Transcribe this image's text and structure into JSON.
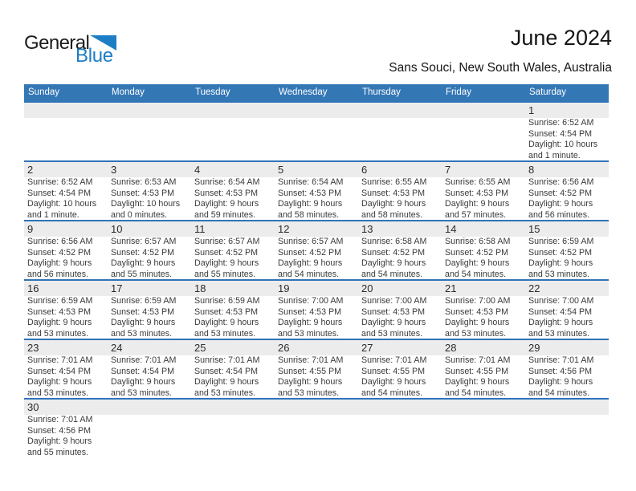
{
  "logo": {
    "line1": "General",
    "line2": "Blue",
    "blue": "#1d7ec6"
  },
  "header": {
    "title": "June 2024",
    "subtitle": "Sans Souci, New South Wales, Australia"
  },
  "colors": {
    "weekday_bar": "#3477b5",
    "week_divider": "#2e74b8",
    "number_strip": "#ececec",
    "weekday_text": "#ffffff"
  },
  "weekday_header": [
    "Sunday",
    "Monday",
    "Tuesday",
    "Wednesday",
    "Thursday",
    "Friday",
    "Saturday"
  ],
  "weeks": [
    [
      null,
      null,
      null,
      null,
      null,
      null,
      {
        "n": "1",
        "lines": [
          "Sunrise: 6:52 AM",
          "Sunset: 4:54 PM",
          "Daylight: 10 hours",
          "and 1 minute."
        ]
      }
    ],
    [
      {
        "n": "2",
        "lines": [
          "Sunrise: 6:52 AM",
          "Sunset: 4:54 PM",
          "Daylight: 10 hours",
          "and 1 minute."
        ]
      },
      {
        "n": "3",
        "lines": [
          "Sunrise: 6:53 AM",
          "Sunset: 4:53 PM",
          "Daylight: 10 hours",
          "and 0 minutes."
        ]
      },
      {
        "n": "4",
        "lines": [
          "Sunrise: 6:54 AM",
          "Sunset: 4:53 PM",
          "Daylight: 9 hours",
          "and 59 minutes."
        ]
      },
      {
        "n": "5",
        "lines": [
          "Sunrise: 6:54 AM",
          "Sunset: 4:53 PM",
          "Daylight: 9 hours",
          "and 58 minutes."
        ]
      },
      {
        "n": "6",
        "lines": [
          "Sunrise: 6:55 AM",
          "Sunset: 4:53 PM",
          "Daylight: 9 hours",
          "and 58 minutes."
        ]
      },
      {
        "n": "7",
        "lines": [
          "Sunrise: 6:55 AM",
          "Sunset: 4:53 PM",
          "Daylight: 9 hours",
          "and 57 minutes."
        ]
      },
      {
        "n": "8",
        "lines": [
          "Sunrise: 6:56 AM",
          "Sunset: 4:52 PM",
          "Daylight: 9 hours",
          "and 56 minutes."
        ]
      }
    ],
    [
      {
        "n": "9",
        "lines": [
          "Sunrise: 6:56 AM",
          "Sunset: 4:52 PM",
          "Daylight: 9 hours",
          "and 56 minutes."
        ]
      },
      {
        "n": "10",
        "lines": [
          "Sunrise: 6:57 AM",
          "Sunset: 4:52 PM",
          "Daylight: 9 hours",
          "and 55 minutes."
        ]
      },
      {
        "n": "11",
        "lines": [
          "Sunrise: 6:57 AM",
          "Sunset: 4:52 PM",
          "Daylight: 9 hours",
          "and 55 minutes."
        ]
      },
      {
        "n": "12",
        "lines": [
          "Sunrise: 6:57 AM",
          "Sunset: 4:52 PM",
          "Daylight: 9 hours",
          "and 54 minutes."
        ]
      },
      {
        "n": "13",
        "lines": [
          "Sunrise: 6:58 AM",
          "Sunset: 4:52 PM",
          "Daylight: 9 hours",
          "and 54 minutes."
        ]
      },
      {
        "n": "14",
        "lines": [
          "Sunrise: 6:58 AM",
          "Sunset: 4:52 PM",
          "Daylight: 9 hours",
          "and 54 minutes."
        ]
      },
      {
        "n": "15",
        "lines": [
          "Sunrise: 6:59 AM",
          "Sunset: 4:52 PM",
          "Daylight: 9 hours",
          "and 53 minutes."
        ]
      }
    ],
    [
      {
        "n": "16",
        "lines": [
          "Sunrise: 6:59 AM",
          "Sunset: 4:53 PM",
          "Daylight: 9 hours",
          "and 53 minutes."
        ]
      },
      {
        "n": "17",
        "lines": [
          "Sunrise: 6:59 AM",
          "Sunset: 4:53 PM",
          "Daylight: 9 hours",
          "and 53 minutes."
        ]
      },
      {
        "n": "18",
        "lines": [
          "Sunrise: 6:59 AM",
          "Sunset: 4:53 PM",
          "Daylight: 9 hours",
          "and 53 minutes."
        ]
      },
      {
        "n": "19",
        "lines": [
          "Sunrise: 7:00 AM",
          "Sunset: 4:53 PM",
          "Daylight: 9 hours",
          "and 53 minutes."
        ]
      },
      {
        "n": "20",
        "lines": [
          "Sunrise: 7:00 AM",
          "Sunset: 4:53 PM",
          "Daylight: 9 hours",
          "and 53 minutes."
        ]
      },
      {
        "n": "21",
        "lines": [
          "Sunrise: 7:00 AM",
          "Sunset: 4:53 PM",
          "Daylight: 9 hours",
          "and 53 minutes."
        ]
      },
      {
        "n": "22",
        "lines": [
          "Sunrise: 7:00 AM",
          "Sunset: 4:54 PM",
          "Daylight: 9 hours",
          "and 53 minutes."
        ]
      }
    ],
    [
      {
        "n": "23",
        "lines": [
          "Sunrise: 7:01 AM",
          "Sunset: 4:54 PM",
          "Daylight: 9 hours",
          "and 53 minutes."
        ]
      },
      {
        "n": "24",
        "lines": [
          "Sunrise: 7:01 AM",
          "Sunset: 4:54 PM",
          "Daylight: 9 hours",
          "and 53 minutes."
        ]
      },
      {
        "n": "25",
        "lines": [
          "Sunrise: 7:01 AM",
          "Sunset: 4:54 PM",
          "Daylight: 9 hours",
          "and 53 minutes."
        ]
      },
      {
        "n": "26",
        "lines": [
          "Sunrise: 7:01 AM",
          "Sunset: 4:55 PM",
          "Daylight: 9 hours",
          "and 53 minutes."
        ]
      },
      {
        "n": "27",
        "lines": [
          "Sunrise: 7:01 AM",
          "Sunset: 4:55 PM",
          "Daylight: 9 hours",
          "and 54 minutes."
        ]
      },
      {
        "n": "28",
        "lines": [
          "Sunrise: 7:01 AM",
          "Sunset: 4:55 PM",
          "Daylight: 9 hours",
          "and 54 minutes."
        ]
      },
      {
        "n": "29",
        "lines": [
          "Sunrise: 7:01 AM",
          "Sunset: 4:56 PM",
          "Daylight: 9 hours",
          "and 54 minutes."
        ]
      }
    ],
    [
      {
        "n": "30",
        "lines": [
          "Sunrise: 7:01 AM",
          "Sunset: 4:56 PM",
          "Daylight: 9 hours",
          "and 55 minutes."
        ]
      },
      null,
      null,
      null,
      null,
      null,
      null
    ]
  ]
}
